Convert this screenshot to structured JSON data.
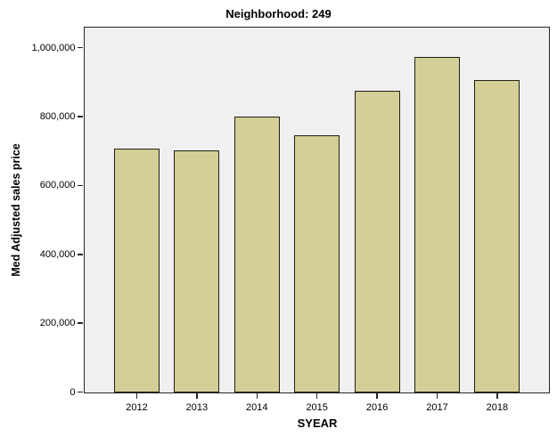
{
  "chart_data": {
    "type": "bar",
    "title": "Neighborhood: 249",
    "xlabel": "SYEAR",
    "ylabel": "Med Adjusted sales price",
    "categories": [
      "2012",
      "2013",
      "2014",
      "2015",
      "2016",
      "2017",
      "2018"
    ],
    "values": [
      706000,
      702000,
      799000,
      747000,
      874000,
      973000,
      906000
    ],
    "ylim": [
      0,
      1060000
    ],
    "yticks": [
      {
        "value": 0,
        "label": "0"
      },
      {
        "value": 200000,
        "label": "200,000"
      },
      {
        "value": 400000,
        "label": "400,000"
      },
      {
        "value": 600000,
        "label": "600,000"
      },
      {
        "value": 800000,
        "label": "800,000"
      },
      {
        "value": 1000000,
        "label": "1,000,000"
      }
    ],
    "grid": false,
    "legend": false,
    "colors": {
      "bar_fill": "#d3cf97",
      "bar_border": "#1f1f14",
      "plot_bg": "#f0f0f0",
      "frame": "#262626",
      "page_bg": "#ffffff",
      "text": "#000000"
    }
  }
}
